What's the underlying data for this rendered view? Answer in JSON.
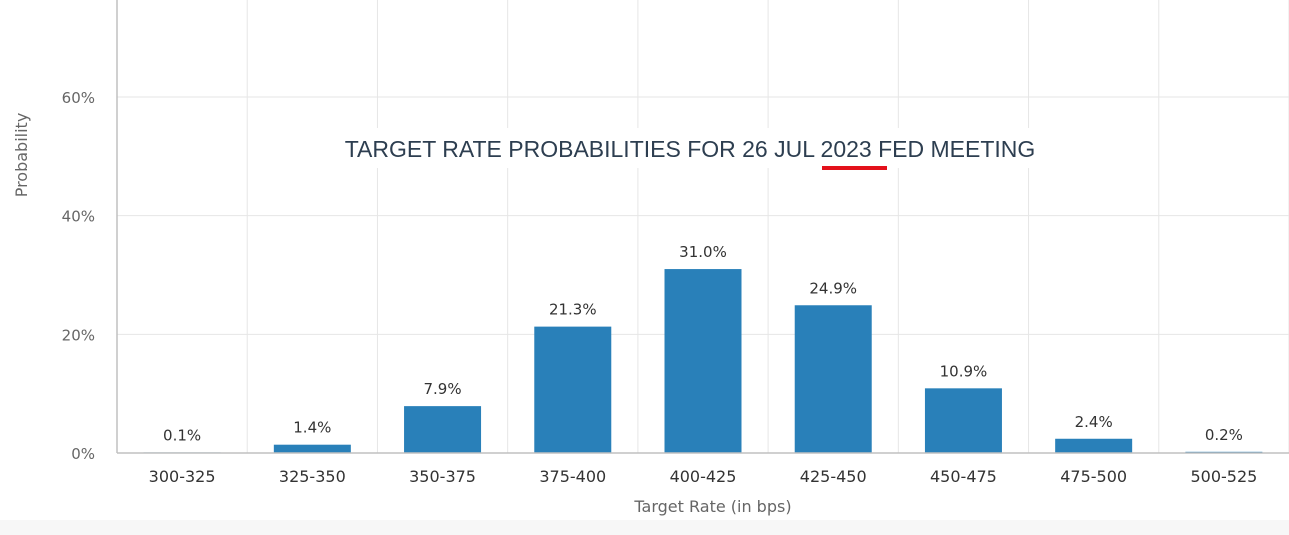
{
  "chart_data": {
    "type": "bar",
    "title": "TARGET RATE PROBABILITIES FOR 26 JUL 2023 FED MEETING",
    "xlabel": "Target Rate (in bps)",
    "ylabel": "Probability",
    "categories": [
      "300-325",
      "325-350",
      "350-375",
      "375-400",
      "400-425",
      "425-450",
      "450-475",
      "475-500",
      "500-525"
    ],
    "values": [
      0.1,
      1.4,
      7.9,
      21.3,
      31.0,
      24.9,
      10.9,
      2.4,
      0.2
    ],
    "data_labels": [
      "0.1%",
      "1.4%",
      "7.9%",
      "21.3%",
      "31.0%",
      "24.9%",
      "10.9%",
      "2.4%",
      "0.2%"
    ],
    "y_ticks": [
      0,
      20,
      40,
      60
    ],
    "y_tick_labels": [
      "0%",
      "20%",
      "40%",
      "60%"
    ],
    "ylim": [
      0,
      76
    ],
    "grid": true,
    "colors": {
      "bar": "#2980b9",
      "grid": "#e6e6e6",
      "axis": "#c0c0c0",
      "title": "#2d3e50",
      "text": "#333333",
      "tick": "#666666",
      "highlight": "#e3111b"
    }
  }
}
